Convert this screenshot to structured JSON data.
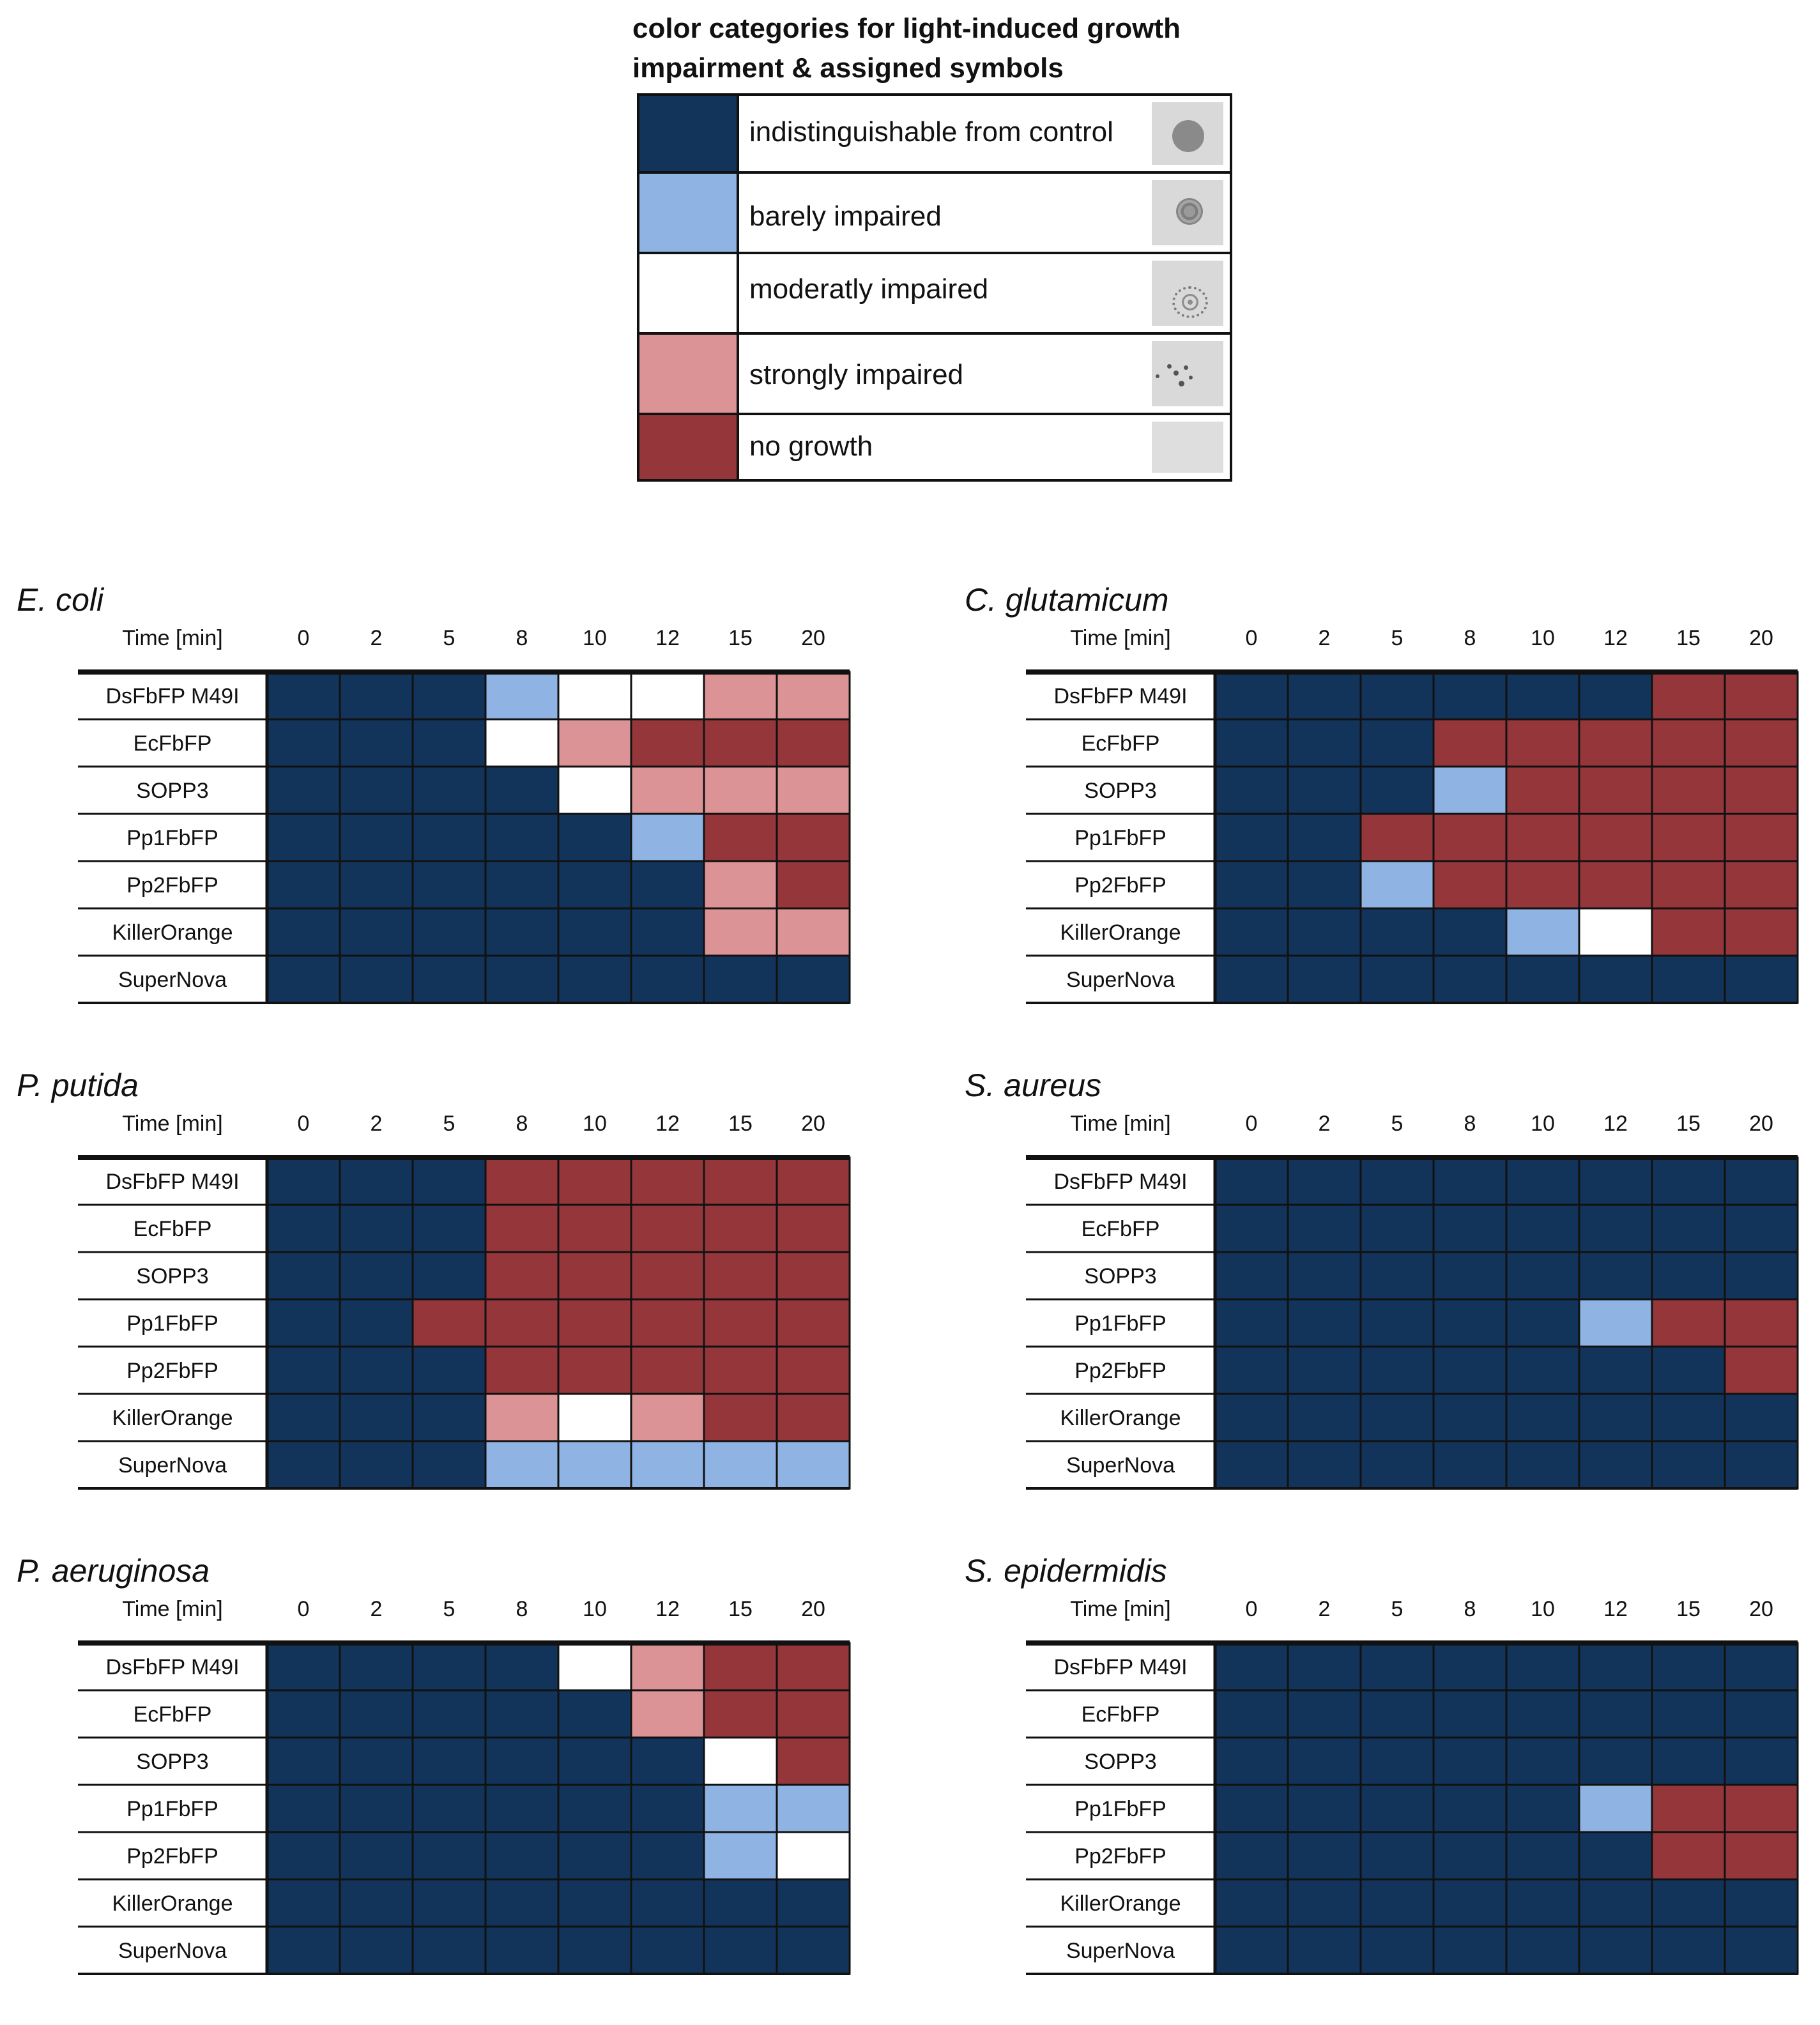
{
  "legend": {
    "title_line1": "color categories for light-induced growth",
    "title_line2": "impairment & assigned symbols",
    "categories": [
      {
        "code": 0,
        "label": "indistinguishable from control",
        "color": "#13345a"
      },
      {
        "code": 1,
        "label": "barely impaired",
        "color": "#8fb3e2"
      },
      {
        "code": 2,
        "label": "moderatly impaired",
        "color": "#ffffff"
      },
      {
        "code": 3,
        "label": "strongly impaired",
        "color": "#dc9396"
      },
      {
        "code": 4,
        "label": "no growth",
        "color": "#95373a"
      }
    ]
  },
  "chart_data": [
    {
      "type": "heatmap",
      "title": "E. coli",
      "xlabel": "Time [min]",
      "x": [
        "0",
        "2",
        "5",
        "8",
        "10",
        "12",
        "15",
        "20"
      ],
      "y": [
        "DsFbFP M49I",
        "EcFbFP",
        "SOPP3",
        "Pp1FbFP",
        "Pp2FbFP",
        "KillerOrange",
        "SuperNova"
      ],
      "values": [
        [
          0,
          0,
          0,
          1,
          2,
          2,
          3,
          3
        ],
        [
          0,
          0,
          0,
          2,
          3,
          4,
          4,
          4
        ],
        [
          0,
          0,
          0,
          0,
          2,
          3,
          3,
          3
        ],
        [
          0,
          0,
          0,
          0,
          0,
          1,
          4,
          4
        ],
        [
          0,
          0,
          0,
          0,
          0,
          0,
          3,
          4
        ],
        [
          0,
          0,
          0,
          0,
          0,
          0,
          3,
          3
        ],
        [
          0,
          0,
          0,
          0,
          0,
          0,
          0,
          0
        ]
      ]
    },
    {
      "type": "heatmap",
      "title": "C. glutamicum",
      "xlabel": "Time [min]",
      "x": [
        "0",
        "2",
        "5",
        "8",
        "10",
        "12",
        "15",
        "20"
      ],
      "y": [
        "DsFbFP M49I",
        "EcFbFP",
        "SOPP3",
        "Pp1FbFP",
        "Pp2FbFP",
        "KillerOrange",
        "SuperNova"
      ],
      "values": [
        [
          0,
          0,
          0,
          0,
          0,
          0,
          4,
          4
        ],
        [
          0,
          0,
          0,
          4,
          4,
          4,
          4,
          4
        ],
        [
          0,
          0,
          0,
          1,
          4,
          4,
          4,
          4
        ],
        [
          0,
          0,
          4,
          4,
          4,
          4,
          4,
          4
        ],
        [
          0,
          0,
          1,
          4,
          4,
          4,
          4,
          4
        ],
        [
          0,
          0,
          0,
          0,
          1,
          2,
          4,
          4
        ],
        [
          0,
          0,
          0,
          0,
          0,
          0,
          0,
          0
        ]
      ]
    },
    {
      "type": "heatmap",
      "title": "P. putida",
      "xlabel": "Time [min]",
      "x": [
        "0",
        "2",
        "5",
        "8",
        "10",
        "12",
        "15",
        "20"
      ],
      "y": [
        "DsFbFP M49I",
        "EcFbFP",
        "SOPP3",
        "Pp1FbFP",
        "Pp2FbFP",
        "KillerOrange",
        "SuperNova"
      ],
      "values": [
        [
          0,
          0,
          0,
          4,
          4,
          4,
          4,
          4
        ],
        [
          0,
          0,
          0,
          4,
          4,
          4,
          4,
          4
        ],
        [
          0,
          0,
          0,
          4,
          4,
          4,
          4,
          4
        ],
        [
          0,
          0,
          4,
          4,
          4,
          4,
          4,
          4
        ],
        [
          0,
          0,
          0,
          4,
          4,
          4,
          4,
          4
        ],
        [
          0,
          0,
          0,
          3,
          2,
          3,
          4,
          4
        ],
        [
          0,
          0,
          0,
          1,
          1,
          1,
          1,
          1
        ]
      ]
    },
    {
      "type": "heatmap",
      "title": "S. aureus",
      "xlabel": "Time [min]",
      "x": [
        "0",
        "2",
        "5",
        "8",
        "10",
        "12",
        "15",
        "20"
      ],
      "y": [
        "DsFbFP M49I",
        "EcFbFP",
        "SOPP3",
        "Pp1FbFP",
        "Pp2FbFP",
        "KillerOrange",
        "SuperNova"
      ],
      "values": [
        [
          0,
          0,
          0,
          0,
          0,
          0,
          0,
          0
        ],
        [
          0,
          0,
          0,
          0,
          0,
          0,
          0,
          0
        ],
        [
          0,
          0,
          0,
          0,
          0,
          0,
          0,
          0
        ],
        [
          0,
          0,
          0,
          0,
          0,
          1,
          4,
          4
        ],
        [
          0,
          0,
          0,
          0,
          0,
          0,
          0,
          4
        ],
        [
          0,
          0,
          0,
          0,
          0,
          0,
          0,
          0
        ],
        [
          0,
          0,
          0,
          0,
          0,
          0,
          0,
          0
        ]
      ]
    },
    {
      "type": "heatmap",
      "title": "P. aeruginosa",
      "xlabel": "Time [min]",
      "x": [
        "0",
        "2",
        "5",
        "8",
        "10",
        "12",
        "15",
        "20"
      ],
      "y": [
        "DsFbFP M49I",
        "EcFbFP",
        "SOPP3",
        "Pp1FbFP",
        "Pp2FbFP",
        "KillerOrange",
        "SuperNova"
      ],
      "values": [
        [
          0,
          0,
          0,
          0,
          2,
          3,
          4,
          4
        ],
        [
          0,
          0,
          0,
          0,
          0,
          3,
          4,
          4
        ],
        [
          0,
          0,
          0,
          0,
          0,
          0,
          2,
          4
        ],
        [
          0,
          0,
          0,
          0,
          0,
          0,
          1,
          1
        ],
        [
          0,
          0,
          0,
          0,
          0,
          0,
          1,
          2
        ],
        [
          0,
          0,
          0,
          0,
          0,
          0,
          0,
          0
        ],
        [
          0,
          0,
          0,
          0,
          0,
          0,
          0,
          0
        ]
      ]
    },
    {
      "type": "heatmap",
      "title": "S. epidermidis",
      "xlabel": "Time [min]",
      "x": [
        "0",
        "2",
        "5",
        "8",
        "10",
        "12",
        "15",
        "20"
      ],
      "y": [
        "DsFbFP M49I",
        "EcFbFP",
        "SOPP3",
        "Pp1FbFP",
        "Pp2FbFP",
        "KillerOrange",
        "SuperNova"
      ],
      "values": [
        [
          0,
          0,
          0,
          0,
          0,
          0,
          0,
          0
        ],
        [
          0,
          0,
          0,
          0,
          0,
          0,
          0,
          0
        ],
        [
          0,
          0,
          0,
          0,
          0,
          0,
          0,
          0
        ],
        [
          0,
          0,
          0,
          0,
          0,
          1,
          4,
          4
        ],
        [
          0,
          0,
          0,
          0,
          0,
          0,
          4,
          4
        ],
        [
          0,
          0,
          0,
          0,
          0,
          0,
          0,
          0
        ],
        [
          0,
          0,
          0,
          0,
          0,
          0,
          0,
          0
        ]
      ]
    }
  ]
}
